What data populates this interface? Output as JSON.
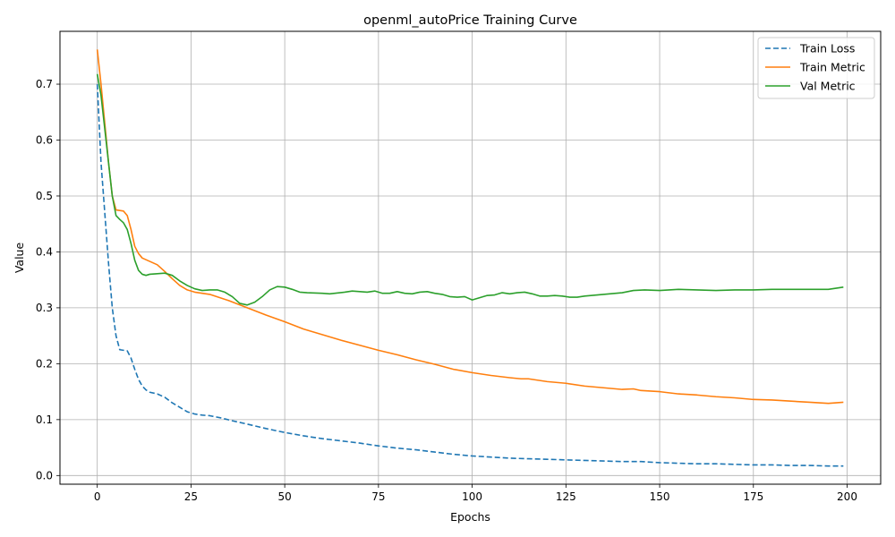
{
  "chart_data": {
    "type": "line",
    "title": "openml_autoPrice Training Curve",
    "xlabel": "Epochs",
    "ylabel": "Value",
    "xlim": [
      -9.95,
      208.95
    ],
    "ylim": [
      -0.0155,
      0.7945
    ],
    "xticks": [
      0,
      25,
      50,
      75,
      100,
      125,
      150,
      175,
      200
    ],
    "yticks": [
      0.0,
      0.1,
      0.2,
      0.3,
      0.4,
      0.5,
      0.6,
      0.7
    ],
    "xtick_labels": [
      "0",
      "25",
      "50",
      "75",
      "100",
      "125",
      "150",
      "175",
      "200"
    ],
    "ytick_labels": [
      "0.0",
      "0.1",
      "0.2",
      "0.3",
      "0.4",
      "0.5",
      "0.6",
      "0.7"
    ],
    "grid": true,
    "legend_position": "top-right",
    "series": [
      {
        "name": "Train Loss",
        "color": "#1f77b4",
        "dash": "dashed",
        "points": [
          [
            0,
            0.7
          ],
          [
            1,
            0.56
          ],
          [
            2,
            0.47
          ],
          [
            3,
            0.38
          ],
          [
            4,
            0.3
          ],
          [
            5,
            0.25
          ],
          [
            6,
            0.225
          ],
          [
            7,
            0.224
          ],
          [
            8,
            0.223
          ],
          [
            9,
            0.21
          ],
          [
            10,
            0.19
          ],
          [
            11,
            0.172
          ],
          [
            12,
            0.16
          ],
          [
            13,
            0.153
          ],
          [
            14,
            0.149
          ],
          [
            16,
            0.146
          ],
          [
            18,
            0.14
          ],
          [
            20,
            0.13
          ],
          [
            22,
            0.122
          ],
          [
            24,
            0.114
          ],
          [
            26,
            0.11
          ],
          [
            28,
            0.108
          ],
          [
            30,
            0.107
          ],
          [
            33,
            0.103
          ],
          [
            36,
            0.098
          ],
          [
            40,
            0.092
          ],
          [
            45,
            0.084
          ],
          [
            50,
            0.077
          ],
          [
            55,
            0.071
          ],
          [
            60,
            0.066
          ],
          [
            65,
            0.062
          ],
          [
            70,
            0.058
          ],
          [
            75,
            0.053
          ],
          [
            80,
            0.049
          ],
          [
            85,
            0.046
          ],
          [
            90,
            0.042
          ],
          [
            95,
            0.038
          ],
          [
            100,
            0.035
          ],
          [
            105,
            0.033
          ],
          [
            110,
            0.031
          ],
          [
            115,
            0.03
          ],
          [
            120,
            0.029
          ],
          [
            125,
            0.028
          ],
          [
            130,
            0.027
          ],
          [
            135,
            0.026
          ],
          [
            140,
            0.025
          ],
          [
            145,
            0.025
          ],
          [
            150,
            0.023
          ],
          [
            155,
            0.022
          ],
          [
            160,
            0.021
          ],
          [
            165,
            0.021
          ],
          [
            170,
            0.02
          ],
          [
            175,
            0.019
          ],
          [
            180,
            0.019
          ],
          [
            185,
            0.018
          ],
          [
            190,
            0.018
          ],
          [
            195,
            0.017
          ],
          [
            199,
            0.017
          ]
        ]
      },
      {
        "name": "Train Metric",
        "color": "#ff7f0e",
        "dash": "solid",
        "points": [
          [
            0,
            0.762
          ],
          [
            1,
            0.7
          ],
          [
            2,
            0.63
          ],
          [
            3,
            0.56
          ],
          [
            4,
            0.5
          ],
          [
            5,
            0.475
          ],
          [
            6,
            0.474
          ],
          [
            7,
            0.473
          ],
          [
            8,
            0.465
          ],
          [
            9,
            0.44
          ],
          [
            10,
            0.41
          ],
          [
            11,
            0.397
          ],
          [
            12,
            0.389
          ],
          [
            14,
            0.383
          ],
          [
            16,
            0.377
          ],
          [
            18,
            0.365
          ],
          [
            20,
            0.352
          ],
          [
            22,
            0.34
          ],
          [
            24,
            0.332
          ],
          [
            26,
            0.328
          ],
          [
            30,
            0.324
          ],
          [
            35,
            0.313
          ],
          [
            40,
            0.3
          ],
          [
            45,
            0.287
          ],
          [
            50,
            0.275
          ],
          [
            55,
            0.262
          ],
          [
            60,
            0.252
          ],
          [
            65,
            0.242
          ],
          [
            70,
            0.233
          ],
          [
            75,
            0.224
          ],
          [
            80,
            0.216
          ],
          [
            85,
            0.207
          ],
          [
            90,
            0.199
          ],
          [
            95,
            0.19
          ],
          [
            100,
            0.184
          ],
          [
            105,
            0.179
          ],
          [
            110,
            0.175
          ],
          [
            113,
            0.173
          ],
          [
            115,
            0.173
          ],
          [
            120,
            0.168
          ],
          [
            125,
            0.165
          ],
          [
            130,
            0.16
          ],
          [
            135,
            0.157
          ],
          [
            140,
            0.154
          ],
          [
            143,
            0.155
          ],
          [
            145,
            0.152
          ],
          [
            150,
            0.15
          ],
          [
            155,
            0.146
          ],
          [
            160,
            0.144
          ],
          [
            165,
            0.141
          ],
          [
            170,
            0.139
          ],
          [
            175,
            0.136
          ],
          [
            180,
            0.135
          ],
          [
            185,
            0.133
          ],
          [
            190,
            0.131
          ],
          [
            195,
            0.129
          ],
          [
            199,
            0.131
          ]
        ]
      },
      {
        "name": "Val Metric",
        "color": "#2ca02c",
        "dash": "solid",
        "points": [
          [
            0,
            0.718
          ],
          [
            1,
            0.68
          ],
          [
            2,
            0.62
          ],
          [
            3,
            0.56
          ],
          [
            4,
            0.5
          ],
          [
            5,
            0.465
          ],
          [
            6,
            0.458
          ],
          [
            7,
            0.452
          ],
          [
            8,
            0.44
          ],
          [
            9,
            0.415
          ],
          [
            10,
            0.385
          ],
          [
            11,
            0.367
          ],
          [
            12,
            0.36
          ],
          [
            13,
            0.358
          ],
          [
            14,
            0.36
          ],
          [
            16,
            0.361
          ],
          [
            18,
            0.362
          ],
          [
            20,
            0.358
          ],
          [
            22,
            0.348
          ],
          [
            24,
            0.34
          ],
          [
            26,
            0.334
          ],
          [
            28,
            0.331
          ],
          [
            30,
            0.332
          ],
          [
            32,
            0.332
          ],
          [
            34,
            0.328
          ],
          [
            36,
            0.32
          ],
          [
            38,
            0.308
          ],
          [
            40,
            0.305
          ],
          [
            42,
            0.31
          ],
          [
            44,
            0.32
          ],
          [
            46,
            0.332
          ],
          [
            48,
            0.338
          ],
          [
            50,
            0.337
          ],
          [
            52,
            0.333
          ],
          [
            54,
            0.328
          ],
          [
            56,
            0.327
          ],
          [
            60,
            0.326
          ],
          [
            62,
            0.325
          ],
          [
            66,
            0.328
          ],
          [
            68,
            0.33
          ],
          [
            72,
            0.328
          ],
          [
            74,
            0.33
          ],
          [
            76,
            0.326
          ],
          [
            78,
            0.326
          ],
          [
            80,
            0.329
          ],
          [
            82,
            0.326
          ],
          [
            84,
            0.325
          ],
          [
            86,
            0.328
          ],
          [
            88,
            0.329
          ],
          [
            90,
            0.326
          ],
          [
            92,
            0.324
          ],
          [
            94,
            0.32
          ],
          [
            96,
            0.319
          ],
          [
            98,
            0.32
          ],
          [
            100,
            0.314
          ],
          [
            102,
            0.318
          ],
          [
            104,
            0.322
          ],
          [
            106,
            0.323
          ],
          [
            108,
            0.327
          ],
          [
            110,
            0.325
          ],
          [
            112,
            0.327
          ],
          [
            114,
            0.328
          ],
          [
            116,
            0.325
          ],
          [
            118,
            0.321
          ],
          [
            120,
            0.321
          ],
          [
            122,
            0.322
          ],
          [
            124,
            0.321
          ],
          [
            126,
            0.319
          ],
          [
            128,
            0.319
          ],
          [
            130,
            0.321
          ],
          [
            135,
            0.324
          ],
          [
            140,
            0.327
          ],
          [
            143,
            0.331
          ],
          [
            146,
            0.332
          ],
          [
            150,
            0.331
          ],
          [
            155,
            0.333
          ],
          [
            160,
            0.332
          ],
          [
            165,
            0.331
          ],
          [
            170,
            0.332
          ],
          [
            175,
            0.332
          ],
          [
            180,
            0.333
          ],
          [
            185,
            0.333
          ],
          [
            190,
            0.333
          ],
          [
            195,
            0.333
          ],
          [
            199,
            0.337
          ]
        ]
      }
    ]
  }
}
